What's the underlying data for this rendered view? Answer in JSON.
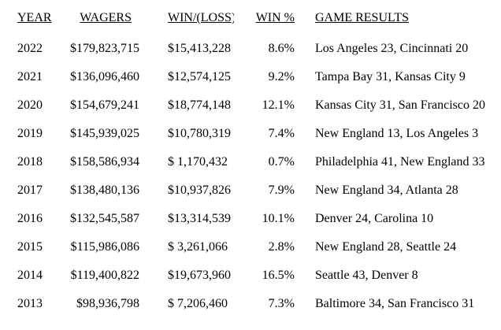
{
  "table": {
    "headers": [
      "YEAR",
      "WAGERS",
      "WIN/(LOSS)",
      "WIN %",
      "GAME RESULTS"
    ],
    "rows": [
      {
        "year": "2022",
        "wagers": "$179,823,715",
        "win_loss": "$15,413,228",
        "win_pct": "8.6%",
        "game_results": "Los Angeles 23, Cincinnati 20"
      },
      {
        "year": "2021",
        "wagers": "$136,096,460",
        "win_loss": "$12,574,125",
        "win_pct": "9.2%",
        "game_results": "Tampa Bay 31, Kansas City 9"
      },
      {
        "year": "2020",
        "wagers": "$154,679,241",
        "win_loss": "$18,774,148",
        "win_pct": "12.1%",
        "game_results": "Kansas City 31, San Francisco 20"
      },
      {
        "year": "2019",
        "wagers": "$145,939,025",
        "win_loss": "$10,780,319",
        "win_pct": "7.4%",
        "game_results": "New England 13, Los Angeles 3"
      },
      {
        "year": "2018",
        "wagers": "$158,586,934",
        "win_loss": "$ 1,170,432",
        "win_pct": "0.7%",
        "game_results": "Philadelphia 41, New England 33"
      },
      {
        "year": "2017",
        "wagers": "$138,480,136",
        "win_loss": "$10,937,826",
        "win_pct": "7.9%",
        "game_results": "New England 34, Atlanta 28"
      },
      {
        "year": "2016",
        "wagers": "$132,545,587",
        "win_loss": "$13,314,539",
        "win_pct": "10.1%",
        "game_results": "Denver 24, Carolina 10"
      },
      {
        "year": "2015",
        "wagers": "$115,986,086",
        "win_loss": "$ 3,261,066",
        "win_pct": "2.8%",
        "game_results": "New England 28, Seattle 24"
      },
      {
        "year": "2014",
        "wagers": "$119,400,822",
        "win_loss": "$19,673,960",
        "win_pct": "16.5%",
        "game_results": "Seattle 43, Denver 8"
      },
      {
        "year": "2013",
        "wagers": "$98,936,798",
        "win_loss": "$ 7,206,460",
        "win_pct": "7.3%",
        "game_results": "Baltimore 34, San Francisco 31"
      }
    ]
  }
}
